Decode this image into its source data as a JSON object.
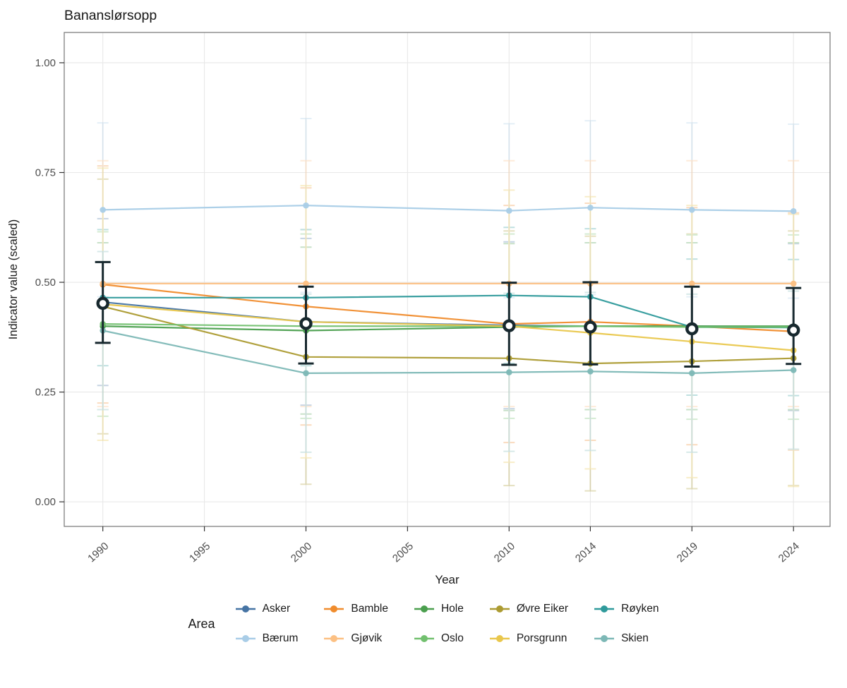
{
  "legend": {
    "title": "Area",
    "rows": [
      [
        "Asker",
        "Bamble",
        "Hole",
        "Øvre Eiker",
        "Røyken"
      ],
      [
        "Bærum",
        "Gjøvik",
        "Oslo",
        "Porsgrunn",
        "Skien"
      ]
    ]
  },
  "chart_data": {
    "type": "line",
    "title": "Bananslørsopp",
    "xlabel": "Year",
    "ylabel": "Indicator value (scaled)",
    "x_ticks": [
      1990,
      1995,
      2000,
      2005,
      2010,
      2014,
      2019,
      2024
    ],
    "x_tick_labels": [
      "1990",
      "1995",
      "2000",
      "2005",
      "2010",
      "2014",
      "2019",
      "2024"
    ],
    "y_ticks": [
      0.0,
      0.25,
      0.5,
      0.75,
      1.0
    ],
    "y_tick_labels": [
      "0.00",
      "0.25",
      "0.50",
      "0.75",
      "1.00"
    ],
    "xlim": [
      1988.1,
      2025.8
    ],
    "ylim": [
      -0.056,
      1.069
    ],
    "grid": true,
    "legend_position": "bottom",
    "years": [
      1990,
      2000,
      2010,
      2014,
      2019,
      2024
    ],
    "series": [
      {
        "name": "Asker",
        "color": "#4674a4",
        "values": [
          0.455,
          0.41,
          0.402,
          0.4,
          0.4,
          0.398
        ],
        "ci_low": [
          0.265,
          0.22,
          0.212,
          0.21,
          0.21,
          0.208
        ],
        "ci_high": [
          0.645,
          0.6,
          0.592,
          0.59,
          0.59,
          0.588
        ]
      },
      {
        "name": "Bamble",
        "color": "#f08c2d",
        "values": [
          0.495,
          0.445,
          0.405,
          0.41,
          0.4,
          0.388
        ],
        "ci_low": [
          0.225,
          0.175,
          0.135,
          0.14,
          0.13,
          0.118
        ],
        "ci_high": [
          0.765,
          0.715,
          0.675,
          0.68,
          0.67,
          0.658
        ]
      },
      {
        "name": "Hole",
        "color": "#4b9f4e",
        "values": [
          0.4,
          0.39,
          0.398,
          0.4,
          0.4,
          0.4
        ],
        "ci_low": [
          0.21,
          0.2,
          0.208,
          0.21,
          0.21,
          0.21
        ],
        "ci_high": [
          0.59,
          0.58,
          0.588,
          0.59,
          0.59,
          0.59
        ]
      },
      {
        "name": "Øvre Eiker",
        "color": "#ac9b32",
        "values": [
          0.445,
          0.33,
          0.327,
          0.315,
          0.32,
          0.327
        ],
        "ci_low": [
          0.155,
          0.04,
          0.037,
          0.025,
          0.03,
          0.037
        ],
        "ci_high": [
          0.735,
          0.62,
          0.617,
          0.605,
          0.61,
          0.617
        ]
      },
      {
        "name": "Røyken",
        "color": "#2f9a9b",
        "values": [
          0.465,
          0.465,
          0.47,
          0.467,
          0.398,
          0.397
        ],
        "ci_low": [
          0.31,
          0.31,
          0.315,
          0.312,
          0.243,
          0.242
        ],
        "ci_high": [
          0.62,
          0.62,
          0.625,
          0.622,
          0.553,
          0.552
        ]
      },
      {
        "name": "Bærum",
        "color": "#a9cde7",
        "values": [
          0.665,
          0.675,
          0.663,
          0.67,
          0.665,
          0.662
        ],
        "ci_low": [
          0.467,
          0.477,
          0.465,
          0.472,
          0.467,
          0.464
        ],
        "ci_high": [
          0.863,
          0.873,
          0.861,
          0.868,
          0.863,
          0.86
        ]
      },
      {
        "name": "Gjøvik",
        "color": "#fcc083",
        "values": [
          0.497,
          0.497,
          0.497,
          0.497,
          0.497,
          0.497
        ],
        "ci_low": [
          0.217,
          0.217,
          0.217,
          0.217,
          0.217,
          0.217
        ],
        "ci_high": [
          0.777,
          0.777,
          0.777,
          0.777,
          0.777,
          0.777
        ]
      },
      {
        "name": "Oslo",
        "color": "#72c06f",
        "values": [
          0.405,
          0.4,
          0.4,
          0.4,
          0.398,
          0.398
        ],
        "ci_low": [
          0.195,
          0.19,
          0.19,
          0.19,
          0.188,
          0.188
        ],
        "ci_high": [
          0.615,
          0.61,
          0.61,
          0.61,
          0.608,
          0.608
        ]
      },
      {
        "name": "Porsgrunn",
        "color": "#e9c74c",
        "values": [
          0.45,
          0.41,
          0.4,
          0.385,
          0.365,
          0.345
        ],
        "ci_low": [
          0.14,
          0.1,
          0.09,
          0.075,
          0.055,
          0.035
        ],
        "ci_high": [
          0.76,
          0.72,
          0.71,
          0.695,
          0.675,
          0.655
        ]
      },
      {
        "name": "Skien",
        "color": "#7db8b6",
        "values": [
          0.39,
          0.293,
          0.295,
          0.297,
          0.293,
          0.3
        ],
        "ci_low": [
          0.21,
          0.113,
          0.115,
          0.117,
          0.113,
          0.12
        ],
        "ci_high": [
          0.57,
          0.473,
          0.475,
          0.477,
          0.473,
          0.48
        ]
      }
    ],
    "median": {
      "name": "median",
      "color": "#17282e",
      "values": [
        0.452,
        0.406,
        0.401,
        0.398,
        0.394,
        0.391
      ],
      "low": [
        0.362,
        0.315,
        0.312,
        0.313,
        0.308,
        0.314
      ],
      "high": [
        0.546,
        0.49,
        0.499,
        0.5,
        0.49,
        0.487
      ]
    },
    "colors": {
      "grid": "#e8e8e8",
      "panel_border": "#7f7f7f",
      "tick": "#333333",
      "tick_label": "#4d4d4d",
      "text": "#1a1a1a"
    }
  }
}
